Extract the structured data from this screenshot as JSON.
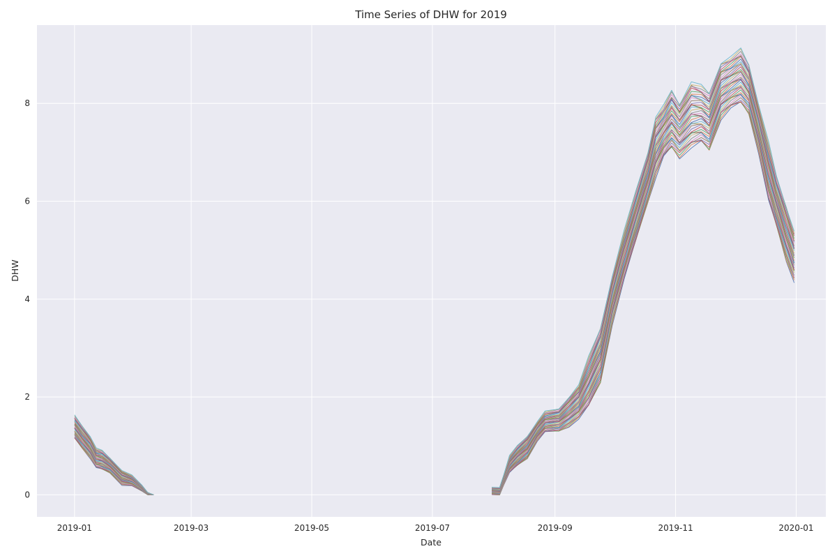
{
  "chart_data": {
    "type": "line",
    "title": "Time Series of DHW for 2019",
    "xlabel": "Date",
    "ylabel": "DHW",
    "xlim": [
      "2018-12-13",
      "2020-01-16"
    ],
    "ylim": [
      -0.45,
      9.6
    ],
    "x_ticks": [
      "2019-01-01",
      "2019-03-01",
      "2019-05-01",
      "2019-07-01",
      "2019-09-01",
      "2019-11-01",
      "2020-01-01"
    ],
    "x_tick_labels": [
      "2019-01",
      "2019-03",
      "2019-05",
      "2019-07",
      "2019-09",
      "2019-11",
      "2020-01"
    ],
    "y_ticks": [
      0,
      2,
      4,
      6,
      8
    ],
    "y_tick_labels": [
      "0",
      "2",
      "4",
      "6",
      "8"
    ],
    "grid": true,
    "background": "#eaeaf2",
    "grid_color": "#ffffff",
    "series_palette": [
      "#4c72b0",
      "#dd8452",
      "#55a868",
      "#c44e52",
      "#8172b3",
      "#937860",
      "#da8bc3",
      "#8c8c8c",
      "#ccb974",
      "#64b5cd"
    ],
    "series_count": 50,
    "series_note": "Each series has the envelope shape below, scaled between low and high and offset slightly.",
    "envelope_segments": [
      {
        "points": [
          {
            "x": "2019-01-01",
            "low": 1.15,
            "high": 1.62
          },
          {
            "x": "2019-01-05",
            "low": 0.95,
            "high": 1.4
          },
          {
            "x": "2019-01-09",
            "low": 0.75,
            "high": 1.2
          },
          {
            "x": "2019-01-12",
            "low": 0.55,
            "high": 0.95
          },
          {
            "x": "2019-01-15",
            "low": 0.52,
            "high": 0.9
          },
          {
            "x": "2019-01-19",
            "low": 0.45,
            "high": 0.75
          },
          {
            "x": "2019-01-25",
            "low": 0.2,
            "high": 0.5
          },
          {
            "x": "2019-01-30",
            "low": 0.18,
            "high": 0.4
          },
          {
            "x": "2019-02-04",
            "low": 0.08,
            "high": 0.2
          },
          {
            "x": "2019-02-07",
            "low": 0.0,
            "high": 0.05
          },
          {
            "x": "2019-02-10",
            "low": 0.0,
            "high": 0.0
          }
        ]
      },
      {
        "points": [
          {
            "x": "2019-07-31",
            "low": 0.0,
            "high": 0.15
          },
          {
            "x": "2019-08-04",
            "low": 0.0,
            "high": 0.15
          },
          {
            "x": "2019-08-06",
            "low": 0.2,
            "high": 0.4
          },
          {
            "x": "2019-08-09",
            "low": 0.45,
            "high": 0.8
          },
          {
            "x": "2019-08-13",
            "low": 0.6,
            "high": 1.0
          },
          {
            "x": "2019-08-18",
            "low": 0.75,
            "high": 1.2
          },
          {
            "x": "2019-08-23",
            "low": 1.1,
            "high": 1.5
          },
          {
            "x": "2019-08-27",
            "low": 1.28,
            "high": 1.7
          },
          {
            "x": "2019-09-03",
            "low": 1.3,
            "high": 1.75
          },
          {
            "x": "2019-09-08",
            "low": 1.4,
            "high": 2.0
          },
          {
            "x": "2019-09-13",
            "low": 1.55,
            "high": 2.25
          },
          {
            "x": "2019-09-18",
            "low": 1.8,
            "high": 2.8
          },
          {
            "x": "2019-09-24",
            "low": 2.3,
            "high": 3.4
          },
          {
            "x": "2019-09-30",
            "low": 3.5,
            "high": 4.5
          },
          {
            "x": "2019-10-06",
            "low": 4.4,
            "high": 5.4
          },
          {
            "x": "2019-10-12",
            "low": 5.2,
            "high": 6.2
          },
          {
            "x": "2019-10-18",
            "low": 6.0,
            "high": 7.0
          },
          {
            "x": "2019-10-22",
            "low": 6.5,
            "high": 7.75
          },
          {
            "x": "2019-10-26",
            "low": 6.9,
            "high": 7.95
          },
          {
            "x": "2019-10-30",
            "low": 7.1,
            "high": 8.25
          },
          {
            "x": "2019-11-03",
            "low": 6.9,
            "high": 8.0
          },
          {
            "x": "2019-11-09",
            "low": 7.1,
            "high": 8.45
          },
          {
            "x": "2019-11-14",
            "low": 7.2,
            "high": 8.35
          },
          {
            "x": "2019-11-18",
            "low": 7.05,
            "high": 8.2
          },
          {
            "x": "2019-11-24",
            "low": 7.7,
            "high": 8.85
          },
          {
            "x": "2019-11-29",
            "low": 7.9,
            "high": 8.95
          },
          {
            "x": "2019-12-04",
            "low": 8.0,
            "high": 9.1
          },
          {
            "x": "2019-12-08",
            "low": 7.8,
            "high": 8.8
          },
          {
            "x": "2019-12-13",
            "low": 7.0,
            "high": 8.0
          },
          {
            "x": "2019-12-18",
            "low": 6.0,
            "high": 7.2
          },
          {
            "x": "2019-12-22",
            "low": 5.5,
            "high": 6.5
          },
          {
            "x": "2019-12-27",
            "low": 4.8,
            "high": 5.9
          },
          {
            "x": "2019-12-31",
            "low": 4.35,
            "high": 5.4
          }
        ]
      }
    ]
  }
}
